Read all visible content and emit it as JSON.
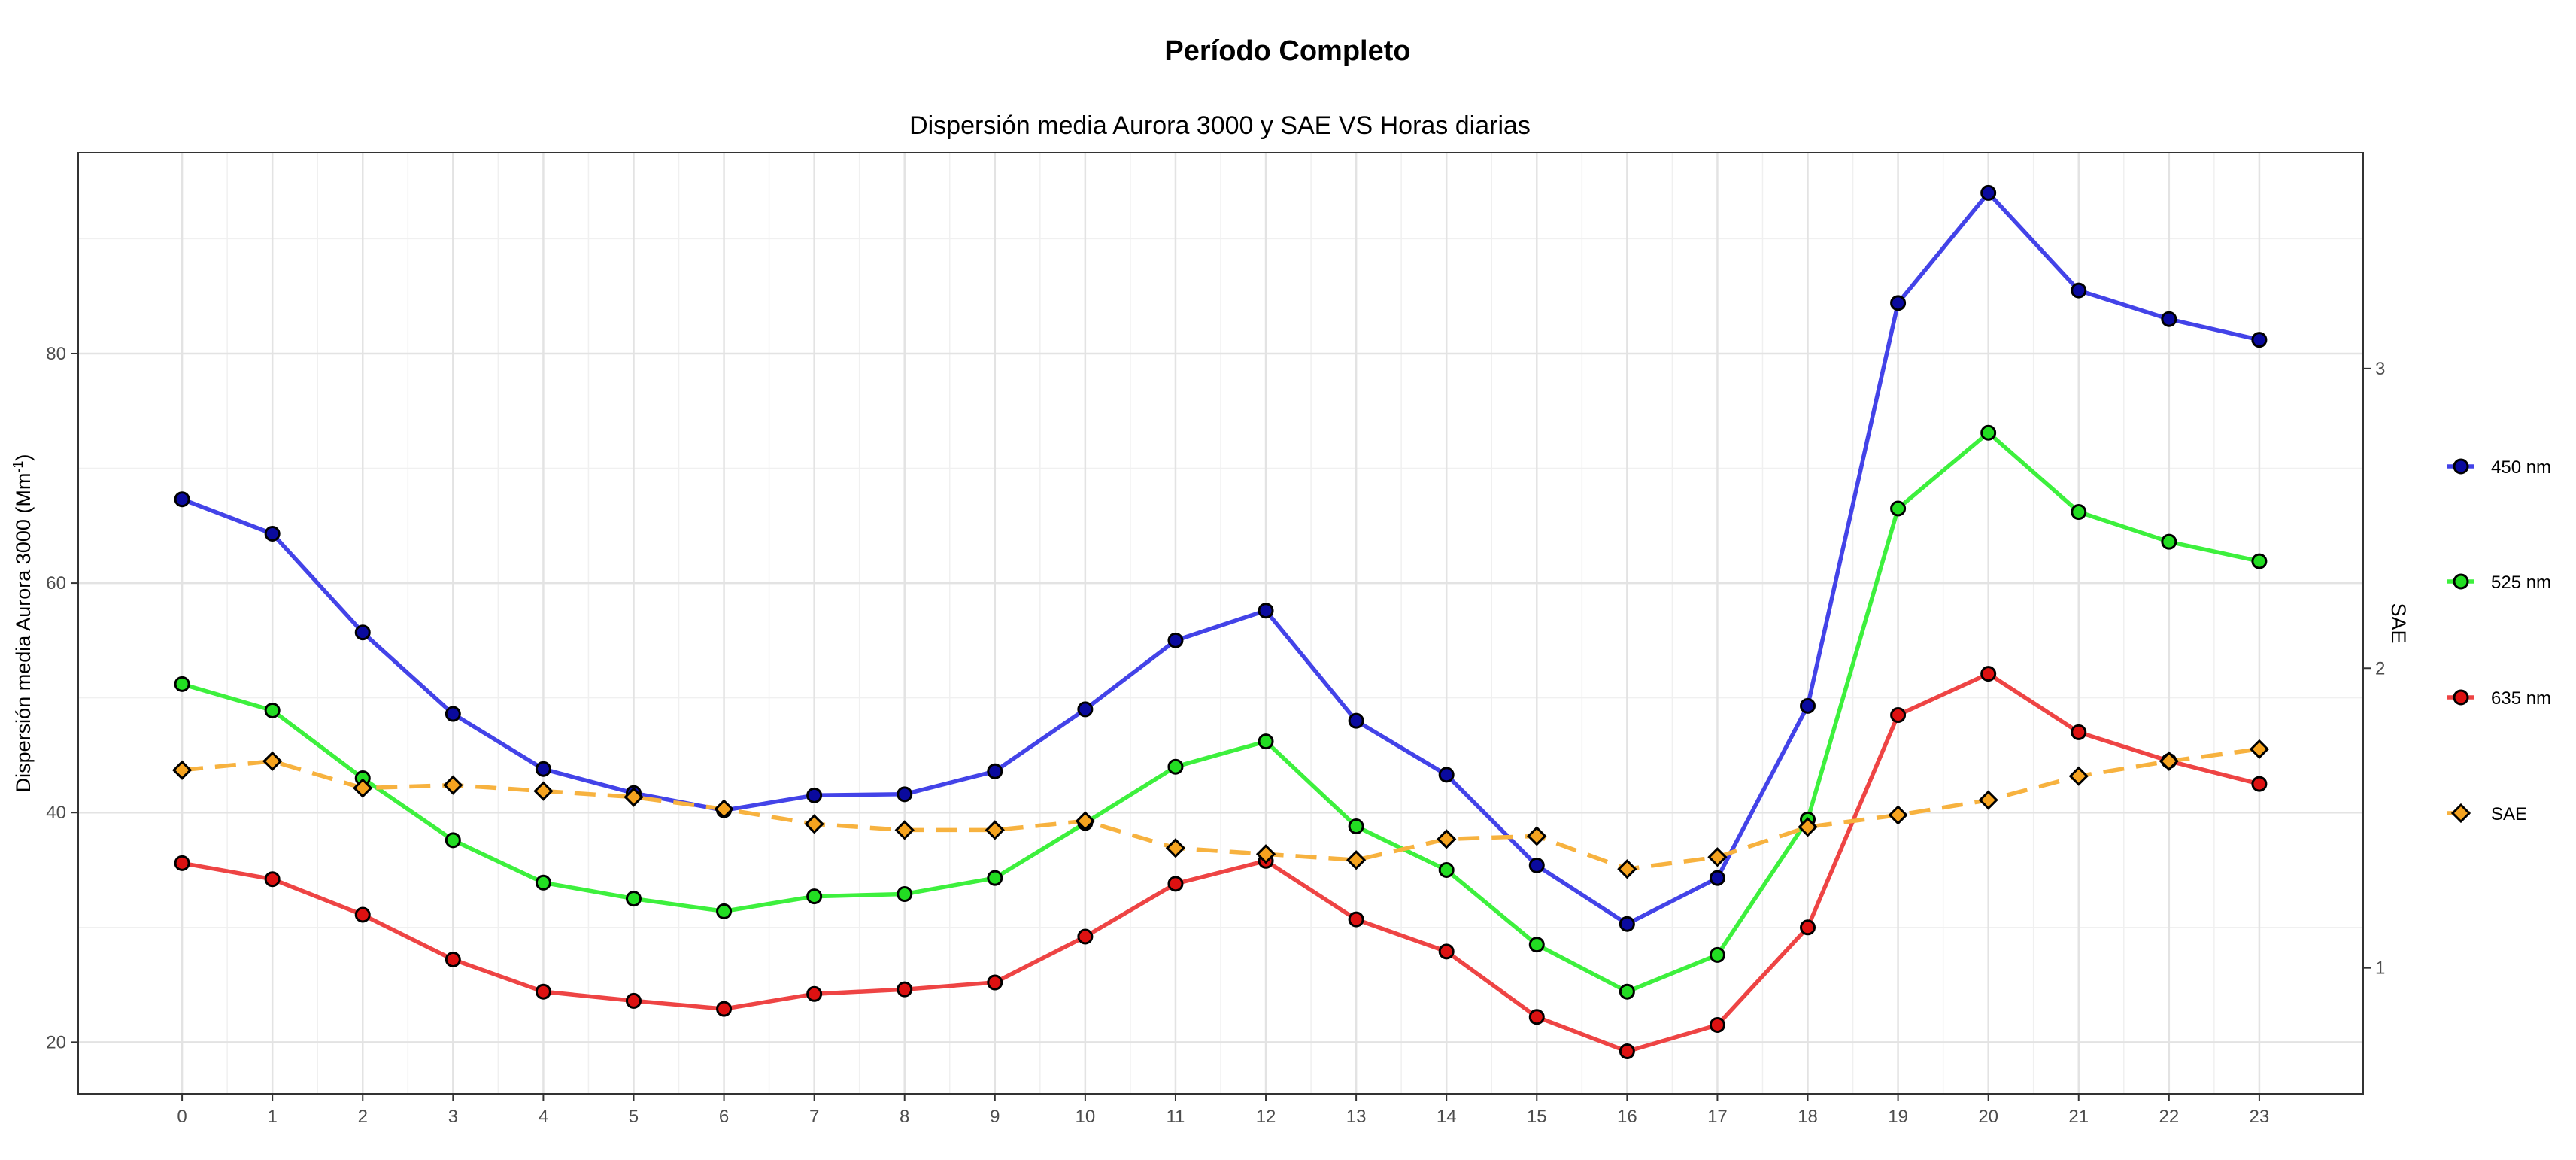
{
  "chart_data": {
    "type": "line",
    "title": "Período Completo",
    "subtitle": "Dispersión media Aurora 3000 y SAE VS Horas diarias",
    "ylabel": "Dispersión media Aurora 3000 (Mm",
    "ylabel_sup": "-1",
    "ylabel_end": ")",
    "y2label": "SAE",
    "x": [
      0,
      1,
      2,
      3,
      4,
      5,
      6,
      7,
      8,
      9,
      10,
      11,
      12,
      13,
      14,
      15,
      16,
      17,
      18,
      19,
      20,
      21,
      22,
      23
    ],
    "xticks": [
      "0",
      "1",
      "2",
      "3",
      "4",
      "5",
      "6",
      "7",
      "8",
      "9",
      "10",
      "11",
      "12",
      "13",
      "14",
      "15",
      "16",
      "17",
      "18",
      "19",
      "20",
      "21",
      "22",
      "23"
    ],
    "xlim": [
      -1.15,
      24.15
    ],
    "ylim": [
      15.5,
      97.5
    ],
    "yticks": [
      20,
      40,
      60,
      80
    ],
    "y2lim": [
      0.58,
      3.72
    ],
    "y2ticks": [
      1,
      2,
      3
    ],
    "grid": true,
    "legend_position": "right",
    "series": [
      {
        "name": "450 nm",
        "axis": "left",
        "color": "#4343e8",
        "marker_fill": "#0a0a9e",
        "marker": "circle",
        "dashed": false,
        "values": [
          67.3,
          64.3,
          55.7,
          48.6,
          43.8,
          41.7,
          40.2,
          41.5,
          41.6,
          43.6,
          49.0,
          55.0,
          57.6,
          48.0,
          43.3,
          35.4,
          30.3,
          34.3,
          49.3,
          84.4,
          94.0,
          85.5,
          83.0,
          81.2
        ]
      },
      {
        "name": "525 nm",
        "axis": "left",
        "color": "#3df03d",
        "marker_fill": "#22dd22",
        "marker": "circle",
        "dashed": false,
        "values": [
          51.2,
          48.9,
          43.0,
          37.6,
          33.9,
          32.5,
          31.4,
          32.7,
          32.9,
          34.3,
          39.1,
          44.0,
          46.2,
          38.8,
          35.0,
          28.5,
          24.4,
          27.6,
          39.4,
          66.5,
          73.1,
          66.2,
          63.6,
          61.9
        ]
      },
      {
        "name": "635 nm",
        "axis": "left",
        "color": "#ee4444",
        "marker_fill": "#dd1111",
        "marker": "circle",
        "dashed": false,
        "values": [
          35.6,
          34.2,
          31.1,
          27.2,
          24.4,
          23.6,
          22.9,
          24.2,
          24.6,
          25.2,
          29.2,
          33.8,
          35.8,
          30.7,
          27.9,
          22.2,
          19.2,
          21.5,
          30.0,
          48.5,
          52.1,
          47.0,
          44.5,
          42.5
        ]
      },
      {
        "name": "SAE",
        "axis": "right",
        "color": "#f7b23f",
        "marker_fill": "#f5a31f",
        "marker": "diamond",
        "dashed": true,
        "values": [
          1.66,
          1.69,
          1.6,
          1.61,
          1.59,
          1.57,
          1.53,
          1.48,
          1.46,
          1.46,
          1.49,
          1.4,
          1.38,
          1.36,
          1.43,
          1.44,
          1.33,
          1.37,
          1.47,
          1.51,
          1.56,
          1.64,
          1.69,
          1.73
        ]
      }
    ]
  }
}
